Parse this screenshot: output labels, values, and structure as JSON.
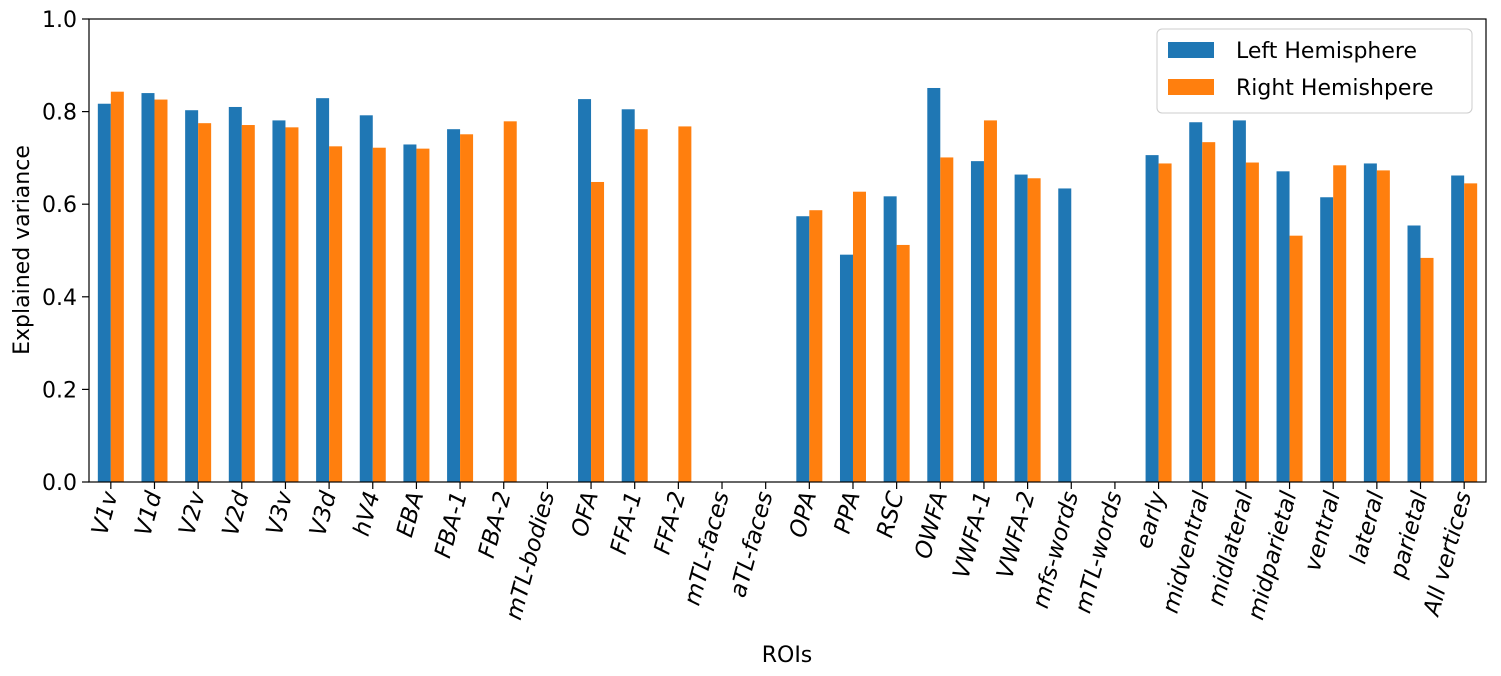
{
  "chart_data": {
    "type": "bar",
    "title": "",
    "xlabel": "ROIs",
    "ylabel": "Explained variance",
    "ylim": [
      0,
      1.0
    ],
    "yticks": [
      "0.0",
      "0.2",
      "0.4",
      "0.6",
      "0.8",
      "1.0"
    ],
    "legend_position": "top-right",
    "grid": false,
    "categories": [
      "V1v",
      "V1d",
      "V2v",
      "V2d",
      "V3v",
      "V3d",
      "hV4",
      "EBA",
      "FBA-1",
      "FBA-2",
      "mTL-bodies",
      "OFA",
      "FFA-1",
      "FFA-2",
      "mTL-faces",
      "aTL-faces",
      "OPA",
      "PPA",
      "RSC",
      "OWFA",
      "VWFA-1",
      "VWFA-2",
      "mfs-words",
      "mTL-words",
      "early",
      "midventral",
      "midlateral",
      "midparietal",
      "ventral",
      "lateral",
      "parietal",
      "All vertices"
    ],
    "series": [
      {
        "name": "Left Hemisphere",
        "color": "#1f77b4",
        "values": [
          0.817,
          0.84,
          0.803,
          0.81,
          0.781,
          0.829,
          0.792,
          0.729,
          0.762,
          null,
          null,
          0.827,
          0.805,
          null,
          null,
          null,
          0.574,
          0.491,
          0.617,
          0.851,
          0.693,
          0.664,
          0.634,
          null,
          0.706,
          0.777,
          0.781,
          0.671,
          0.615,
          0.688,
          0.554,
          0.662
        ]
      },
      {
        "name": "Right Hemishpere",
        "color": "#ff7f0e",
        "values": [
          0.843,
          0.826,
          0.775,
          0.771,
          0.766,
          0.725,
          0.722,
          0.72,
          0.751,
          0.779,
          null,
          0.648,
          0.762,
          0.768,
          null,
          null,
          0.587,
          0.627,
          0.512,
          0.701,
          0.781,
          0.656,
          null,
          null,
          0.688,
          0.734,
          0.69,
          0.532,
          0.684,
          0.673,
          0.484,
          0.645
        ]
      }
    ]
  }
}
